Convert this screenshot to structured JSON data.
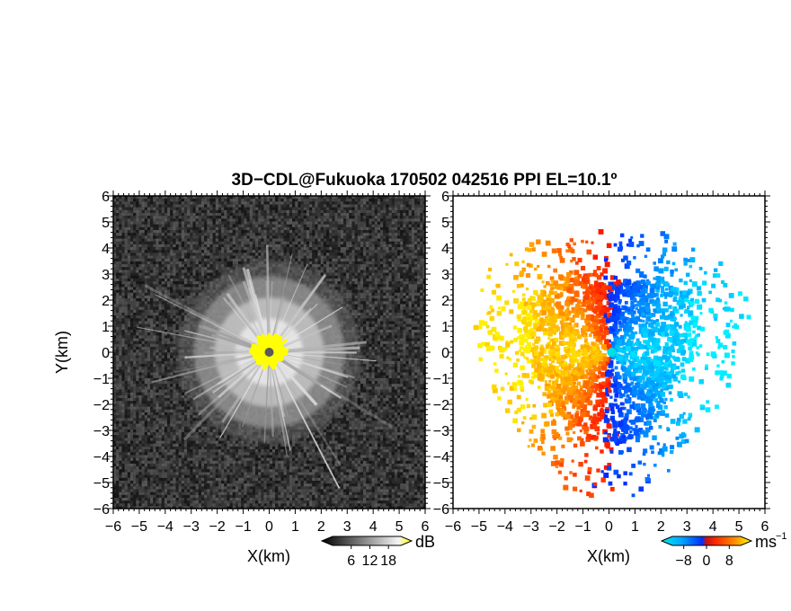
{
  "title": "3D−CDL@Fukuoka 170502 042516 PPI EL=10.1º",
  "colors": {
    "background": "#ffffff",
    "axis": "#000000",
    "reflectivity_low": "#1a1a1a",
    "reflectivity_high": "#ffffff",
    "reflectivity_saturated": "#ffff00",
    "radar_site": "#5a5a5a",
    "velocity_site": "#00e0e0"
  },
  "chart_data": [
    {
      "id": "reflectivity",
      "type": "heatmap",
      "xlabel": "X(km)",
      "ylabel": "Y(km)",
      "xlim": [
        -6,
        6
      ],
      "ylim": [
        -6,
        6
      ],
      "xticks": [
        "−6",
        "−5",
        "−4",
        "−3",
        "−2",
        "−1",
        "0",
        "1",
        "2",
        "3",
        "4",
        "5",
        "6"
      ],
      "yticks": [
        "6",
        "5",
        "4",
        "3",
        "2",
        "1",
        "0",
        "−1",
        "−2",
        "−3",
        "−4",
        "−5",
        "−6"
      ],
      "colorbar": {
        "unit": "dB",
        "ticks": [
          "6",
          "12",
          "18"
        ],
        "range": [
          0,
          22
        ]
      },
      "site": {
        "x": 0,
        "y": 0
      }
    },
    {
      "id": "doppler-velocity",
      "type": "heatmap",
      "xlabel": "X(km)",
      "ylabel": "",
      "xlim": [
        -6,
        6
      ],
      "ylim": [
        -6,
        6
      ],
      "xticks": [
        "−6",
        "−5",
        "−4",
        "−3",
        "−2",
        "−1",
        "0",
        "1",
        "2",
        "3",
        "4",
        "5",
        "6"
      ],
      "yticks": [
        "6",
        "5",
        "4",
        "3",
        "2",
        "1",
        "0",
        "−1",
        "−2",
        "−3",
        "−4",
        "−5",
        "−6"
      ],
      "colorbar": {
        "unit": "ms",
        "unit_exponent": "−1",
        "ticks": [
          "−8",
          "0",
          "8"
        ],
        "range": [
          -12,
          12
        ]
      },
      "site": {
        "x": 0.1,
        "y": 0
      }
    }
  ]
}
